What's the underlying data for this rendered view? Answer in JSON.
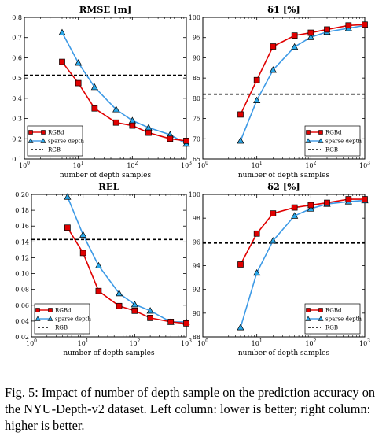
{
  "caption": "Fig. 5: Impact of number of depth sample on the prediction accuracy on the NYU-Depth-v2 dataset. Left column: lower is better; right column: higher is better.",
  "colors": {
    "rgbd": "#e00000",
    "sparse": "#3d9ae6",
    "sparse_marker": "#2aa7e8",
    "rgb": "#000000"
  },
  "chart_data": [
    {
      "type": "line",
      "title": "RMSE [m]",
      "xlabel": "number of depth samples",
      "ylabel": "",
      "xscale": "log",
      "xlim": [
        1,
        1000
      ],
      "ylim": [
        0.1,
        0.8
      ],
      "yticks": [
        "0.1",
        "0.2",
        "0.3",
        "0.4",
        "0.5",
        "0.6",
        "0.7",
        "0.8"
      ],
      "x": [
        5,
        10,
        20,
        50,
        100,
        200,
        500,
        1000
      ],
      "series": [
        {
          "name": "RGBd",
          "values": [
            0.58,
            0.475,
            0.35,
            0.28,
            0.265,
            0.23,
            0.2,
            0.19
          ]
        },
        {
          "name": "sparse depth",
          "values": [
            0.725,
            0.575,
            0.455,
            0.345,
            0.29,
            0.255,
            0.22,
            0.175
          ]
        },
        {
          "name": "RGB",
          "constant": 0.514
        }
      ],
      "legend": "bottom-left",
      "grid": false
    },
    {
      "type": "line",
      "title": "δ1 [%]",
      "xlabel": "number of depth samples",
      "ylabel": "",
      "xscale": "log",
      "xlim": [
        1,
        1000
      ],
      "ylim": [
        65,
        100
      ],
      "yticks": [
        "65",
        "70",
        "75",
        "80",
        "85",
        "90",
        "95",
        "100"
      ],
      "x": [
        5,
        10,
        20,
        50,
        100,
        200,
        500,
        1000
      ],
      "series": [
        {
          "name": "RGBd",
          "values": [
            76.0,
            84.5,
            92.8,
            95.5,
            96.2,
            97.0,
            98.0,
            98.2
          ]
        },
        {
          "name": "sparse depth",
          "values": [
            69.5,
            79.5,
            87.0,
            92.7,
            95.1,
            96.4,
            97.3,
            98.0
          ]
        },
        {
          "name": "RGB",
          "constant": 81.0
        }
      ],
      "legend": "bottom-right",
      "grid": false
    },
    {
      "type": "line",
      "title": "REL",
      "xlabel": "number of depth samples",
      "ylabel": "",
      "xscale": "log",
      "xlim": [
        1,
        1000
      ],
      "ylim": [
        0.02,
        0.2
      ],
      "yticks": [
        "0.02",
        "0.04",
        "0.06",
        "0.08",
        "0.10",
        "0.12",
        "0.14",
        "0.16",
        "0.18",
        "0.20"
      ],
      "x": [
        5,
        10,
        20,
        50,
        100,
        200,
        500,
        1000
      ],
      "series": [
        {
          "name": "RGBd",
          "values": [
            0.158,
            0.126,
            0.078,
            0.059,
            0.053,
            0.044,
            0.039,
            0.037
          ]
        },
        {
          "name": "sparse depth",
          "values": [
            0.197,
            0.149,
            0.11,
            0.075,
            0.061,
            0.053,
            0.039,
            0.039
          ]
        },
        {
          "name": "RGB",
          "constant": 0.143
        }
      ],
      "legend": "bottom-left",
      "grid": false
    },
    {
      "type": "line",
      "title": "δ2 [%]",
      "xlabel": "number of depth samples",
      "ylabel": "",
      "xscale": "log",
      "xlim": [
        1,
        1000
      ],
      "ylim": [
        88,
        100
      ],
      "yticks": [
        "88",
        "90",
        "92",
        "94",
        "96",
        "98",
        "100"
      ],
      "x": [
        5,
        10,
        20,
        50,
        100,
        200,
        500,
        1000
      ],
      "series": [
        {
          "name": "RGBd",
          "values": [
            94.1,
            96.7,
            98.4,
            98.9,
            99.1,
            99.3,
            99.6,
            99.6
          ]
        },
        {
          "name": "sparse depth",
          "values": [
            88.8,
            93.4,
            96.1,
            98.2,
            98.8,
            99.2,
            99.4,
            99.5
          ]
        },
        {
          "name": "RGB",
          "constant": 95.9
        }
      ],
      "legend": "bottom-right",
      "grid": false
    }
  ]
}
